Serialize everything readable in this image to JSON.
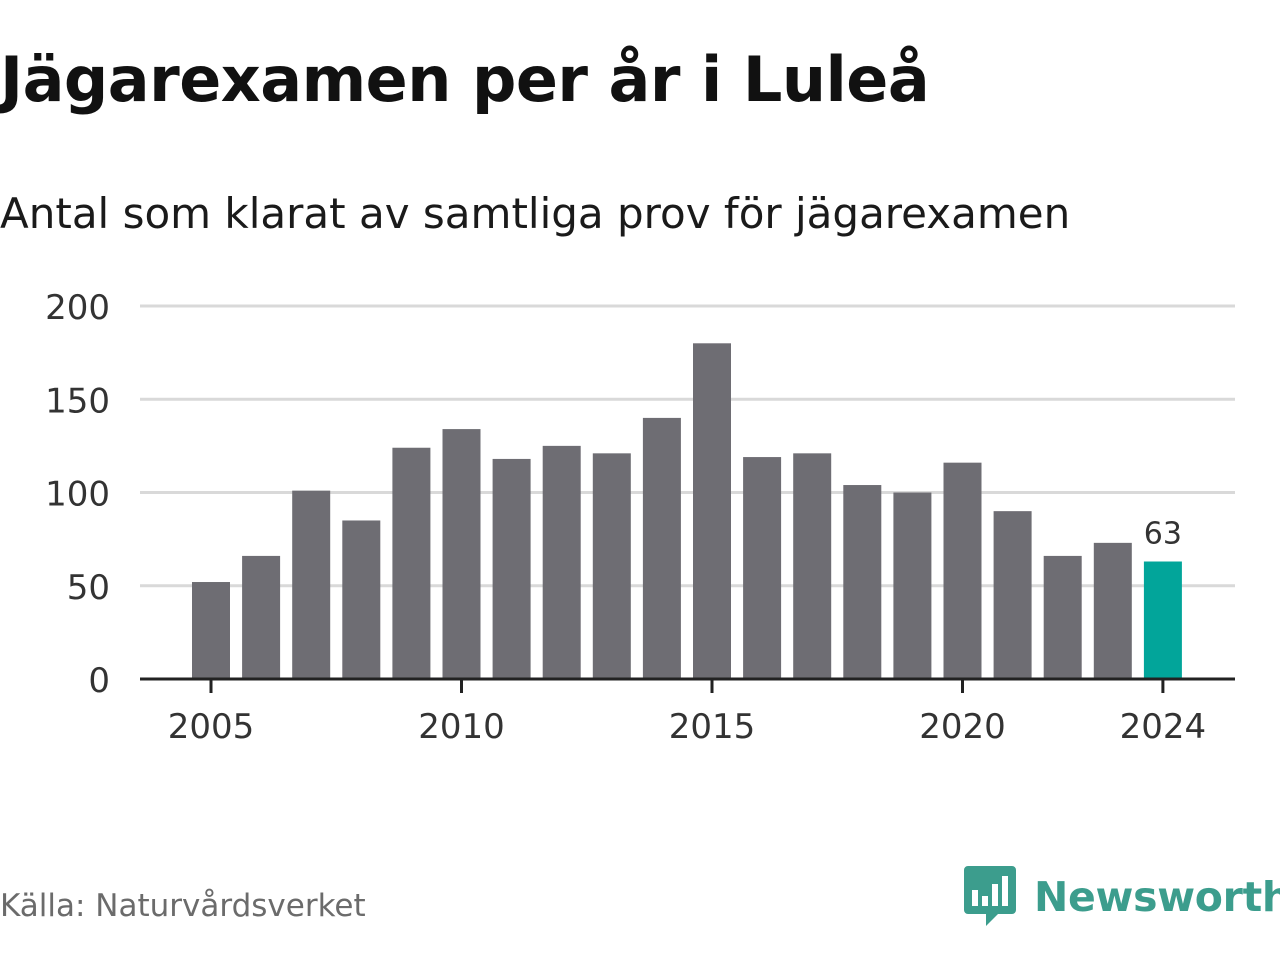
{
  "header": {
    "title": "Jägarexamen per år i Luleå",
    "subtitle": "Antal som klarat av samtliga prov för jägarexamen"
  },
  "footer": {
    "source": "Källa: Naturvårdsverket",
    "brand": "Newsworthy"
  },
  "colors": {
    "bar": "#6e6d73",
    "highlight": "#02a59a",
    "grid": "#d9d9d9",
    "axis": "#222222",
    "text": "#333333",
    "brand": "#3c9d8d"
  },
  "chart_data": {
    "type": "bar",
    "categories": [
      "2005",
      "2006",
      "2007",
      "2008",
      "2009",
      "2010",
      "2011",
      "2012",
      "2013",
      "2014",
      "2015",
      "2016",
      "2017",
      "2018",
      "2019",
      "2020",
      "2021",
      "2022",
      "2023",
      "2024"
    ],
    "values": [
      52,
      66,
      101,
      85,
      124,
      134,
      118,
      125,
      121,
      140,
      180,
      119,
      121,
      104,
      100,
      116,
      90,
      66,
      73,
      63
    ],
    "highlight_index": 19,
    "highlight_label": "63",
    "x_tick_labels": [
      "2005",
      "2010",
      "2015",
      "2020",
      "2024"
    ],
    "y_ticks": [
      0,
      50,
      100,
      150,
      200
    ],
    "ylim": [
      0,
      200
    ],
    "grid": true,
    "legend": "none",
    "title": "Jägarexamen per år i Luleå",
    "subtitle": "Antal som klarat av samtliga prov för jägarexamen",
    "xlabel": "",
    "ylabel": ""
  }
}
